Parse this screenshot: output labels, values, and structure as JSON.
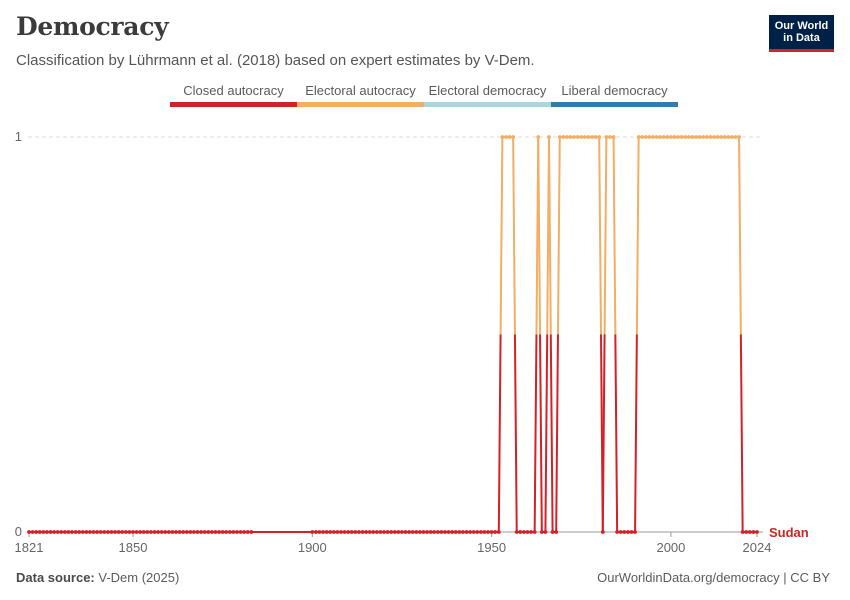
{
  "header": {
    "title": "Democracy",
    "subtitle": "Classification by Lührmann et al. (2018) based on expert estimates by V-Dem.",
    "logo_line1": "Our World",
    "logo_line2": "in Data"
  },
  "legend": [
    {
      "label": "Closed autocracy",
      "color": "#d42027"
    },
    {
      "label": "Electoral autocracy",
      "color": "#f2ae63"
    },
    {
      "label": "Electoral democracy",
      "color": "#a8d8dd"
    },
    {
      "label": "Liberal democracy",
      "color": "#2f7bb2"
    }
  ],
  "footer": {
    "source_label": "Data source:",
    "source_value": "V-Dem (2025)",
    "credit": "OurWorldinData.org/democracy | CC BY"
  },
  "chart_data": {
    "type": "line",
    "title": "Democracy",
    "xlabel": "",
    "ylabel": "",
    "xlim": [
      1821,
      2024
    ],
    "ylim": [
      0,
      1
    ],
    "x_ticks": [
      1821,
      1850,
      1900,
      1950,
      2000,
      2024
    ],
    "y_ticks": [
      0,
      1
    ],
    "grid": true,
    "series": [
      {
        "name": "Sudan",
        "color": "#ce261e",
        "missing_years": [
          [
            1884,
            1899
          ]
        ],
        "runs": [
          {
            "start": 1821,
            "end": 1952,
            "value": 0
          },
          {
            "start": 1953,
            "end": 1956,
            "value": 1
          },
          {
            "start": 1957,
            "end": 1962,
            "value": 0
          },
          {
            "start": 1963,
            "end": 1963,
            "value": 1
          },
          {
            "start": 1964,
            "end": 1965,
            "value": 0
          },
          {
            "start": 1966,
            "end": 1966,
            "value": 1
          },
          {
            "start": 1967,
            "end": 1968,
            "value": 0
          },
          {
            "start": 1969,
            "end": 1980,
            "value": 1
          },
          {
            "start": 1981,
            "end": 1981,
            "value": 0
          },
          {
            "start": 1982,
            "end": 1984,
            "value": 1
          },
          {
            "start": 1985,
            "end": 1990,
            "value": 0
          },
          {
            "start": 1991,
            "end": 2019,
            "value": 1
          },
          {
            "start": 2020,
            "end": 2024,
            "value": 0
          }
        ]
      }
    ]
  }
}
